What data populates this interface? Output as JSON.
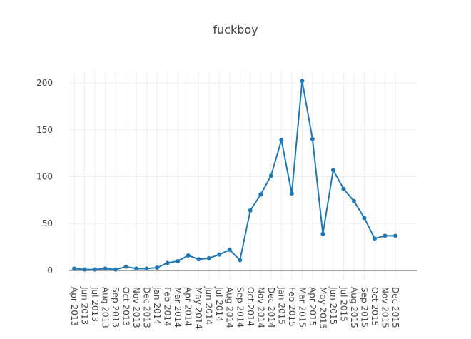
{
  "chart_data": {
    "type": "line",
    "title": "fuckboy",
    "categories": [
      "Apr 2013",
      "Jun 2013",
      "Jul 2013",
      "Aug 2013",
      "Sep 2013",
      "Oct 2013",
      "Nov 2013",
      "Dec 2013",
      "Jan 2014",
      "Feb 2014",
      "Mar 2014",
      "Apr 2014",
      "May 2014",
      "Jun 2014",
      "Jul 2014",
      "Aug 2014",
      "Sep 2014",
      "Oct 2014",
      "Nov 2014",
      "Dec 2014",
      "Jan 2015",
      "Feb 2015",
      "Mar 2015",
      "Apr 2015",
      "May 2015",
      "Jun 2015",
      "Jul 2015",
      "Aug 2015",
      "Sep 2015",
      "Oct 2015",
      "Nov 2015",
      "Dec 2015"
    ],
    "values": [
      2,
      1,
      1,
      2,
      1,
      4,
      2,
      2,
      3,
      8,
      10,
      16,
      12,
      13,
      17,
      22,
      11,
      64,
      81,
      101,
      139,
      82,
      202,
      140,
      39,
      107,
      87,
      74,
      56,
      34,
      37,
      37
    ],
    "color": "#1f77b4",
    "ylim": [
      -9.9,
      212.2
    ],
    "yticks": [
      0,
      50,
      100,
      150,
      200
    ],
    "grid": true
  }
}
